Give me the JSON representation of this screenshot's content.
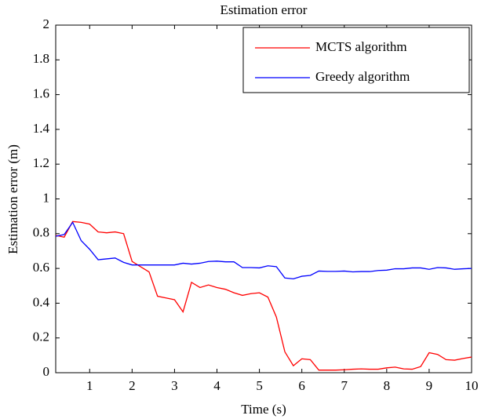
{
  "chart_data": {
    "type": "line",
    "title": "Estimation error",
    "xlabel": "Time (s)",
    "ylabel": "Estimation error (m)",
    "x": [
      0.2,
      0.4,
      0.6,
      0.8,
      1.0,
      1.2,
      1.4,
      1.6,
      1.8,
      2.0,
      2.2,
      2.4,
      2.6,
      2.8,
      3.0,
      3.2,
      3.4,
      3.6,
      3.8,
      4.0,
      4.2,
      4.4,
      4.6,
      4.8,
      5.0,
      5.2,
      5.4,
      5.6,
      5.8,
      6.0,
      6.2,
      6.4,
      6.6,
      6.8,
      7.0,
      7.2,
      7.4,
      7.6,
      7.8,
      8.0,
      8.2,
      8.4,
      8.6,
      8.8,
      9.0,
      9.2,
      9.4,
      9.6,
      9.8,
      10.0
    ],
    "series": [
      {
        "name": "MCTS algorithm",
        "color": "#ff0000",
        "values": [
          0.79,
          0.78,
          0.87,
          0.865,
          0.855,
          0.81,
          0.805,
          0.81,
          0.8,
          0.64,
          0.61,
          0.58,
          0.44,
          0.43,
          0.42,
          0.35,
          0.52,
          0.49,
          0.505,
          0.49,
          0.48,
          0.46,
          0.445,
          0.455,
          0.46,
          0.435,
          0.32,
          0.12,
          0.04,
          0.08,
          0.075,
          0.015,
          0.015,
          0.015,
          0.017,
          0.02,
          0.022,
          0.02,
          0.02,
          0.028,
          0.032,
          0.022,
          0.02,
          0.035,
          0.115,
          0.105,
          0.075,
          0.072,
          0.082,
          0.09
        ]
      },
      {
        "name": "Greedy algorithm",
        "color": "#0000ff",
        "values": [
          0.785,
          0.795,
          0.865,
          0.76,
          0.71,
          0.65,
          0.655,
          0.66,
          0.635,
          0.62,
          0.62,
          0.62,
          0.62,
          0.62,
          0.62,
          0.63,
          0.625,
          0.63,
          0.64,
          0.642,
          0.638,
          0.638,
          0.605,
          0.605,
          0.603,
          0.615,
          0.61,
          0.545,
          0.54,
          0.555,
          0.56,
          0.585,
          0.583,
          0.583,
          0.585,
          0.58,
          0.582,
          0.582,
          0.588,
          0.59,
          0.598,
          0.598,
          0.603,
          0.603,
          0.595,
          0.605,
          0.603,
          0.595,
          0.598,
          0.6
        ]
      }
    ],
    "xlim": [
      0.2,
      10
    ],
    "xticks": [
      1,
      2,
      3,
      4,
      5,
      6,
      7,
      8,
      9,
      10
    ],
    "ylim": [
      0,
      2
    ],
    "yticks": [
      0,
      0.2,
      0.4,
      0.6,
      0.8,
      1,
      1.2,
      1.4,
      1.6,
      1.8,
      2
    ],
    "legend": "upper right",
    "grid": false
  }
}
